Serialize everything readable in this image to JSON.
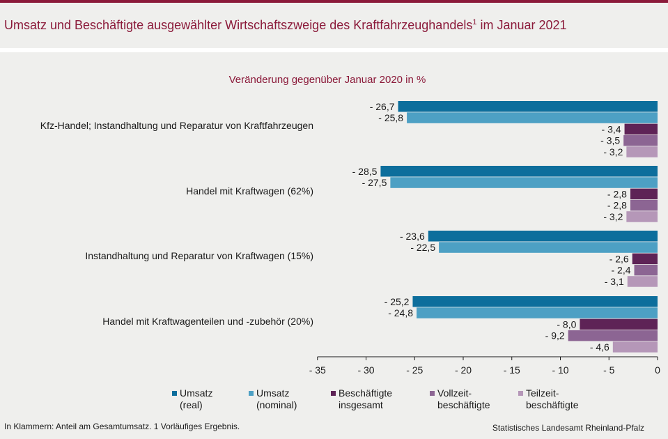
{
  "header": {
    "title": "Umsatz und Beschäftigte ausgewählter Wirtschaftszweige des Kraftfahrzeughandels",
    "title_sup": "1",
    "title_suffix": " im Januar 2021"
  },
  "colors": {
    "brand": "#8b1a3a",
    "umsatz_real": "#0d6e9c",
    "umsatz_nominal": "#4da0c4",
    "besch_insgesamt": "#5e2356",
    "vollzeit": "#8c6593",
    "teilzeit": "#b597b8"
  },
  "chart_data": {
    "type": "bar",
    "orientation": "horizontal",
    "subtitle": "Veränderung gegenüber Januar 2020 in %",
    "xlim": [
      -35,
      0
    ],
    "xticks": [
      -35,
      -30,
      -25,
      -20,
      -15,
      -10,
      -5,
      0
    ],
    "xtick_labels": [
      "- 35",
      "- 30",
      "- 25",
      "- 20",
      "- 15",
      "- 10",
      "- 5",
      "0"
    ],
    "categories": [
      "Kfz-Handel; Instandhaltung und Reparatur von Kraftfahrzeugen",
      "Handel mit Kraftwagen (62%)",
      "Instandhaltung und Reparatur von Kraftwagen (15%)",
      "Handel mit Kraftwagenteilen und -zubehör (20%)"
    ],
    "series": [
      {
        "name": "Umsatz (real)",
        "color": "#0d6e9c",
        "values": [
          -26.7,
          -28.5,
          -23.6,
          -25.2
        ],
        "labels": [
          "- 26,7",
          "- 28,5",
          "- 23,6",
          "- 25,2"
        ]
      },
      {
        "name": "Umsatz (nominal)",
        "color": "#4da0c4",
        "values": [
          -25.8,
          -27.5,
          -22.5,
          -24.8
        ],
        "labels": [
          "- 25,8",
          "- 27,5",
          "- 22,5",
          "- 24,8"
        ]
      },
      {
        "name": "Beschäftigte insgesamt",
        "color": "#5e2356",
        "values": [
          -3.4,
          -2.8,
          -2.6,
          -8.0
        ],
        "labels": [
          "- 3,4",
          "- 2,8",
          "- 2,6",
          "- 8,0"
        ]
      },
      {
        "name": "Vollzeitbeschäftigte",
        "color": "#8c6593",
        "values": [
          -3.5,
          -2.8,
          -2.4,
          -9.2
        ],
        "labels": [
          "- 3,5",
          "- 2,8",
          "- 2,4",
          "- 9,2"
        ]
      },
      {
        "name": "Teilzeitbeschäftigte",
        "color": "#b597b8",
        "values": [
          -3.2,
          -3.2,
          -3.1,
          -4.6
        ],
        "labels": [
          "- 3,2",
          "- 3,2",
          "- 3,1",
          "- 4,6"
        ]
      }
    ],
    "legend": [
      {
        "line1": "Umsatz",
        "line2": "(real)"
      },
      {
        "line1": "Umsatz",
        "line2": "(nominal)"
      },
      {
        "line1": "Beschäftigte",
        "line2": "insgesamt"
      },
      {
        "line1": "Vollzeit-",
        "line2": "beschäftigte"
      },
      {
        "line1": "Teilzeit-",
        "line2": "beschäftigte"
      }
    ]
  },
  "footer": {
    "note": "In Klammern: Anteil am Gesamtumsatz. 1 Vorläufiges Ergebnis.",
    "source": "Statistisches Landesamt Rheinland-Pfalz"
  }
}
